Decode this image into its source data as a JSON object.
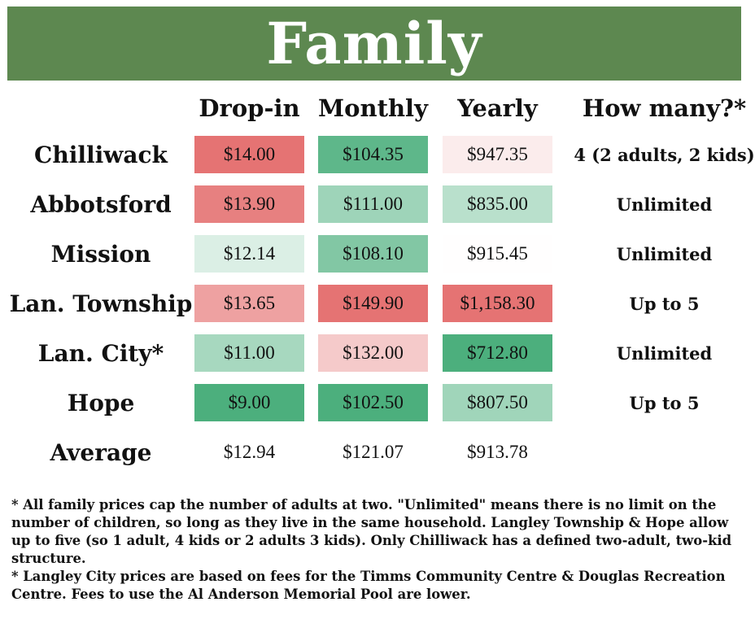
{
  "title": "Family",
  "colors": {
    "banner": "#5d8850",
    "low": "#4caf7d",
    "mid": "#ffffff",
    "high": "#e57373"
  },
  "chart_data": {
    "type": "table",
    "title": "Family",
    "columns": [
      "Drop-in",
      "Monthly",
      "Yearly",
      "How many?*"
    ],
    "rows": [
      {
        "name": "Chilliwack",
        "drop_in": 14.0,
        "monthly": 104.35,
        "yearly": 947.35,
        "drop_in_label": "$14.00",
        "monthly_label": "$104.35",
        "yearly_label": "$947.35",
        "how_many": "4 (2 adults, 2 kids)"
      },
      {
        "name": "Abbotsford",
        "drop_in": 13.9,
        "monthly": 111.0,
        "yearly": 835.0,
        "drop_in_label": "$13.90",
        "monthly_label": "$111.00",
        "yearly_label": "$835.00",
        "how_many": "Unlimited"
      },
      {
        "name": "Mission",
        "drop_in": 12.14,
        "monthly": 108.1,
        "yearly": 915.45,
        "drop_in_label": "$12.14",
        "monthly_label": "$108.10",
        "yearly_label": "$915.45",
        "how_many": "Unlimited"
      },
      {
        "name": "Lan. Township",
        "drop_in": 13.65,
        "monthly": 149.9,
        "yearly": 1158.3,
        "drop_in_label": "$13.65",
        "monthly_label": "$149.90",
        "yearly_label": "$1,158.30",
        "how_many": "Up to 5"
      },
      {
        "name": "Lan. City*",
        "drop_in": 11.0,
        "monthly": 132.0,
        "yearly": 712.8,
        "drop_in_label": "$11.00",
        "monthly_label": "$132.00",
        "yearly_label": "$712.80",
        "how_many": "Unlimited"
      },
      {
        "name": "Hope",
        "drop_in": 9.0,
        "monthly": 102.5,
        "yearly": 807.5,
        "drop_in_label": "$9.00",
        "monthly_label": "$102.50",
        "yearly_label": "$807.50",
        "how_many": "Up to 5"
      }
    ],
    "average": {
      "name": "Average",
      "drop_in": 12.94,
      "monthly": 121.07,
      "yearly": 913.78,
      "drop_in_label": "$12.94",
      "monthly_label": "$121.07",
      "yearly_label": "$913.78"
    },
    "color_scale": "lower prices green, higher prices red, near average white"
  },
  "notes": [
    "* All family prices cap the number of adults at two. \"Unlimited\" means there is no limit on the number of children, so long as they live in the same household. Langley Township & Hope allow up to five (so 1 adult, 4 kids or 2 adults 3 kids). Only Chilliwack has a defined two-adult, two-kid structure.",
    "* Langley City prices are based on fees for the Timms Community Centre & Douglas Recreation Centre. Fees to use the Al Anderson Memorial Pool are lower."
  ]
}
